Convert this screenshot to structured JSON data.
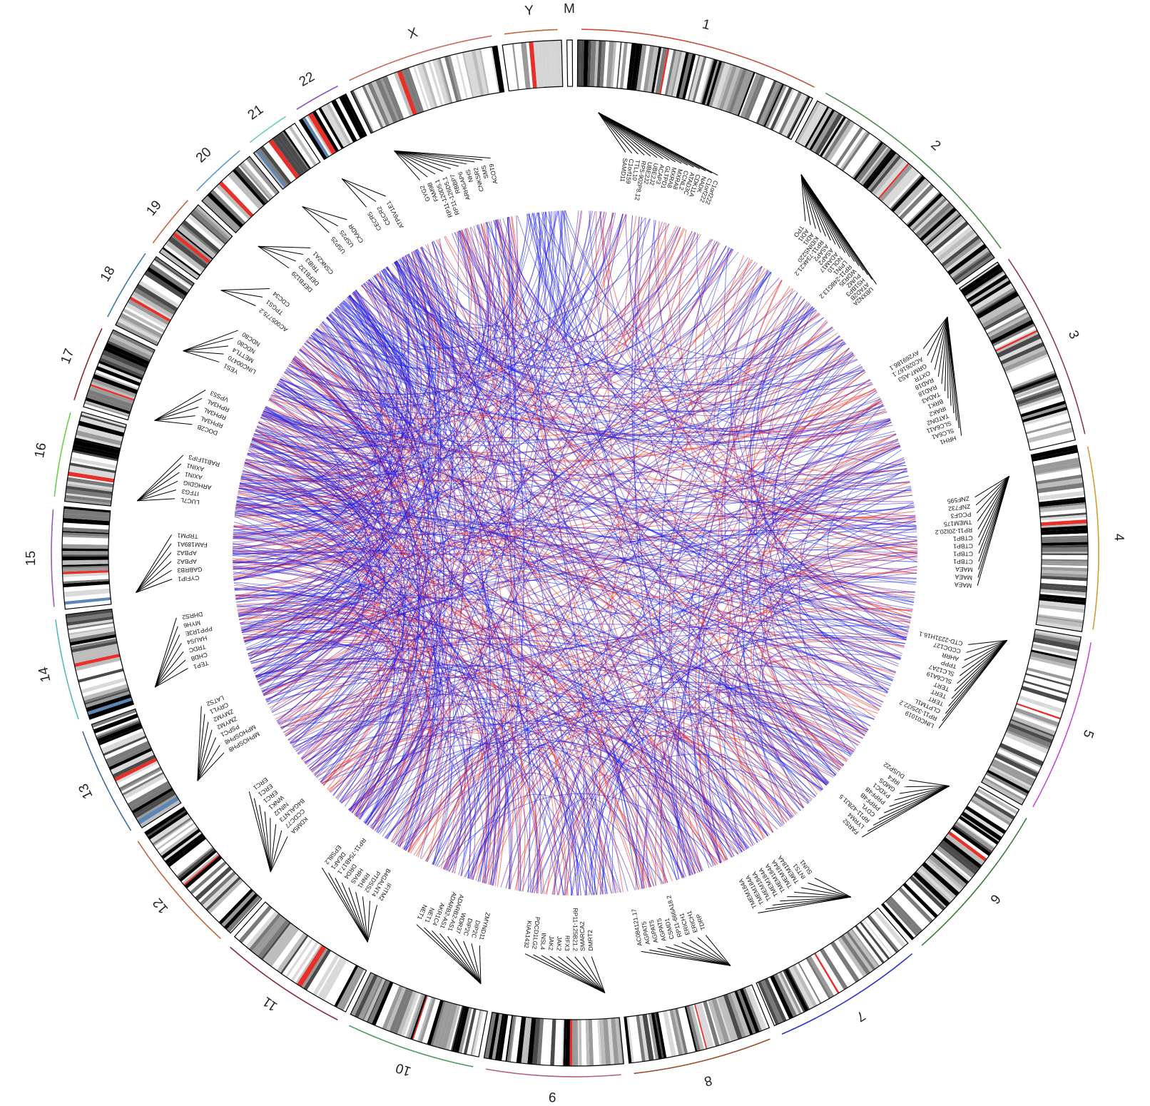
{
  "chromosomes": [
    {
      "id": "1",
      "size": 249,
      "color": "#c84b3c"
    },
    {
      "id": "2",
      "size": 243,
      "color": "#4c8a4c"
    },
    {
      "id": "3",
      "size": 198,
      "color": "#8a3b5a"
    },
    {
      "id": "4",
      "size": 190,
      "color": "#d39b33"
    },
    {
      "id": "5",
      "size": 181,
      "color": "#c84bd0"
    },
    {
      "id": "6",
      "size": 171,
      "color": "#3d7a3d"
    },
    {
      "id": "7",
      "size": 159,
      "color": "#2a35c8"
    },
    {
      "id": "8",
      "size": 146,
      "color": "#9c4a2a"
    },
    {
      "id": "9",
      "size": 141,
      "color": "#b85a8a"
    },
    {
      "id": "10",
      "size": 136,
      "color": "#4f9a5a"
    },
    {
      "id": "11",
      "size": 135,
      "color": "#8a2a3a"
    },
    {
      "id": "12",
      "size": 133,
      "color": "#c2643a"
    },
    {
      "id": "13",
      "size": 115,
      "color": "#3a6a9a"
    },
    {
      "id": "14",
      "size": 107,
      "color": "#5ab8b8"
    },
    {
      "id": "15",
      "size": 102,
      "color": "#9a5ab8"
    },
    {
      "id": "16",
      "size": 90,
      "color": "#6ad04a"
    },
    {
      "id": "17",
      "size": 81,
      "color": "#8a2a2a"
    },
    {
      "id": "18",
      "size": 78,
      "color": "#3a7aa0"
    },
    {
      "id": "19",
      "size": 59,
      "color": "#c2643a"
    },
    {
      "id": "20",
      "size": 63,
      "color": "#5a9ad0"
    },
    {
      "id": "21",
      "size": 48,
      "color": "#6ad0b8"
    },
    {
      "id": "22",
      "size": 51,
      "color": "#8a4ad0"
    },
    {
      "id": "X",
      "size": 155,
      "color": "#c86a5a"
    },
    {
      "id": "Y",
      "size": 57,
      "color": "#c2643a"
    },
    {
      "id": "M",
      "size": 1,
      "color": "#c84b3c"
    }
  ],
  "gene_groups": [
    {
      "chr": "1",
      "genes": [
        "SAMD11",
        "C1orf159",
        "TTLL10",
        "RP5-902P8.12",
        "UBE2J2",
        "UBE2J2",
        "ACAP3",
        "GLTPD1",
        "MXRA8",
        "MXRA8",
        "CCNL2",
        "ATAD3C",
        "CDK11A",
        "NADK",
        "C1orf222",
        "C1orf222"
      ]
    },
    {
      "chr": "2",
      "genes": [
        "TPO",
        "ADI1",
        "ADI1",
        "KIDINS220",
        "RP11-734K21.2",
        "ASAP2",
        "ASAP2",
        "ADAM17",
        "NOL10",
        "LPIN1",
        "RP11-248G13.2",
        "WDR35",
        "PUM2",
        "HS1BP3",
        "ATAD2B",
        "UBXN2A"
      ]
    },
    {
      "chr": "3",
      "genes": [
        "AY269186.1",
        "AC026167.1",
        "GRM7-AS3",
        "OXTR",
        "RAD18",
        "RAD18",
        "TADA3",
        "BRK1",
        "IRAK2",
        "TATDN2",
        "SLC6A11",
        "SLC6A1",
        "HRH1"
      ]
    },
    {
      "chr": "4",
      "genes": [
        "ZNF595",
        "ZNF732",
        "PCGF3",
        "TMEM175",
        "RP11-20I20.2",
        "CTBP1",
        "CTBP1",
        "CTBP1",
        "CTBP1",
        "MAEA",
        "MAEA",
        "MAEA"
      ]
    },
    {
      "chr": "5",
      "genes": [
        "CTD-2231H16.1",
        "CCDC127",
        "AHRR",
        "TPPP",
        "SLC12A7",
        "SLC6A19",
        "TERT",
        "TERT",
        "TERT",
        "CLPTM1L",
        "RP11-325I22.2",
        "LINC01019"
      ]
    },
    {
      "chr": "6",
      "genes": [
        "DUSP22",
        "IRF4",
        "GMDS",
        "PXDC1",
        "PRPF4B",
        "PRPF4B",
        "CDYL",
        "RP11-428J1.5",
        "LYRM4",
        "FARS2"
      ]
    },
    {
      "chr": "7",
      "genes": [
        "SUN1",
        "INTS1",
        "TMEM184A",
        "TMEM184A",
        "TMEM184A",
        "TMEM184A",
        "TMEM184A",
        "TMEM184A",
        "TMEM184A"
      ]
    },
    {
      "chr": "8",
      "genes": [
        "TDRP",
        "ERICH1",
        "ERICH1",
        "RP11-666A18.2",
        "CSMD1",
        "AGPAT5",
        "AGPAT5",
        "AGPAT5",
        "AC084121.17"
      ]
    },
    {
      "chr": "9",
      "genes": [
        "DMRT2",
        "SMARCA2",
        "RP11-125B21.2",
        "RFX3",
        "JAK2",
        "JAK2",
        "INSL4",
        "PDCD1LG2",
        "KIAA1432"
      ]
    },
    {
      "chr": "10",
      "genes": [
        "ZMYND11",
        "DIP2C",
        "DIP2C",
        "WDR37",
        "ADARB2-AS1",
        "ADARB2-AS1",
        "AKR1C4",
        "NET1",
        "NET1"
      ]
    },
    {
      "chr": "11",
      "genes": [
        "IFITM2",
        "B4GALNT4",
        "PTDSS2",
        "RNH1",
        "HRAS",
        "DRD4",
        "RP11-754B17.1",
        "DEAF1",
        "EPS8L2"
      ]
    },
    {
      "chr": "12",
      "genes": [
        "KDM5A",
        "CCDC77",
        "B4GALNT3",
        "NINJ2",
        "WNK1",
        "ERC1",
        "ERC1",
        "ERC1"
      ]
    },
    {
      "chr": "13",
      "genes": [
        "MPHOSPH8",
        "MPHOSPH8",
        "PSPC1",
        "ZMYM2",
        "ZMYM2",
        "CRYL1",
        "LATS2"
      ]
    },
    {
      "chr": "14",
      "genes": [
        "TEP1",
        "CHD8",
        "TRDC",
        "HAUS4",
        "PPP1R3E",
        "MYH6",
        "DHRS2"
      ]
    },
    {
      "chr": "15",
      "genes": [
        "CYFIP1",
        "GABRB3",
        "APBA2",
        "APBA2",
        "FAM189A1",
        "TRPM1"
      ]
    },
    {
      "chr": "16",
      "genes": [
        "LUC7L",
        "ITFG3",
        "ARHGDIG",
        "AXIN1",
        "AXIN1",
        "RAB11FIP3"
      ]
    },
    {
      "chr": "17",
      "genes": [
        "DOC2B",
        "RPH3AL",
        "RPH3AL",
        "RPH3AL",
        "VPS53"
      ]
    },
    {
      "chr": "18",
      "genes": [
        "YES1",
        "LINC00470",
        "METTL4",
        "NDC80",
        "NDC80"
      ]
    },
    {
      "chr": "19",
      "genes": [
        "AC005775.2",
        "TPGS1",
        "CDC34"
      ]
    },
    {
      "chr": "20",
      "genes": [
        "DEFB129",
        "DEFB132",
        "TRIB3",
        "CSNK2A1"
      ]
    },
    {
      "chr": "21",
      "genes": [
        "USP25",
        "USP25",
        "CXADR"
      ]
    },
    {
      "chr": "22",
      "genes": [
        "CECR5",
        "CECR2",
        "ATP6V1E1"
      ]
    },
    {
      "chr": "X",
      "genes": [
        "GYG2",
        "FAM9B",
        "RP11-120D5.1",
        "RP11-126D5.1",
        "RBBP7",
        "ARHGAP6",
        "NHS",
        "CNKSR2",
        "SMS",
        "ACOT9"
      ]
    }
  ],
  "link_colors": {
    "intra": "#e8302a",
    "mixed": "#7a2ab8",
    "inter": "#1a1ae6"
  }
}
